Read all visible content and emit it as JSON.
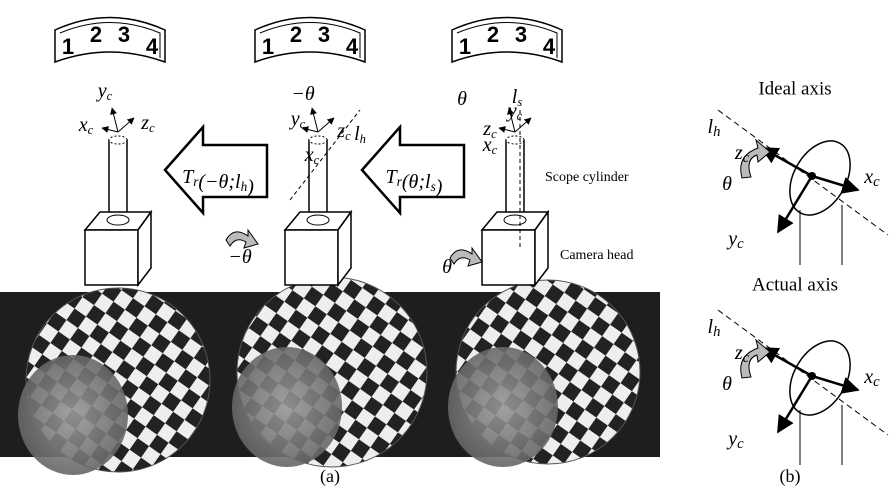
{
  "panel_a": {
    "drums": [
      [
        "1",
        "2",
        "3",
        "4"
      ],
      [
        "1",
        "2",
        "3",
        "4"
      ],
      [
        "1",
        "2",
        "3",
        "4"
      ]
    ],
    "scope_labels": [
      [
        [
          {
            "t": "y",
            "sub": "c"
          }
        ],
        [
          {
            "t": "x",
            "sub": "c"
          }
        ],
        [
          {
            "t": "z",
            "sub": "c"
          }
        ]
      ],
      [
        [
          {
            "t": "−θ"
          }
        ],
        [
          {
            "t": "l",
            "sub": "h"
          }
        ],
        [
          {
            "t": "y",
            "sub": "c"
          }
        ],
        [
          {
            "t": "z",
            "sub": "c"
          }
        ],
        [
          {
            "t": "x",
            "sub": "c"
          }
        ],
        [
          {
            "t": "−θ"
          }
        ]
      ],
      [
        [
          {
            "t": "θ"
          }
        ],
        [
          {
            "t": "l",
            "sub": "s"
          }
        ],
        [
          {
            "t": "y",
            "sub": "c"
          }
        ],
        [
          {
            "t": "z",
            "sub": "c"
          }
        ],
        [
          {
            "t": "x",
            "sub": "c"
          }
        ],
        [
          {
            "t": "θ"
          }
        ]
      ]
    ],
    "transforms": [
      [
        {
          "t": "T",
          "sub": "r"
        },
        {
          "t": "(−θ;"
        },
        {
          "t": "l",
          "sub": "h"
        },
        {
          "t": ")"
        }
      ],
      [
        {
          "t": "T",
          "sub": "r"
        },
        {
          "t": "(θ;"
        },
        {
          "t": "l",
          "sub": "s"
        },
        {
          "t": ")"
        }
      ]
    ],
    "scope_cylinder": "Scope cylinder",
    "camera_head": "Camera head",
    "caption": "(a)"
  },
  "panel_b": {
    "diagrams": [
      {
        "title": "Ideal axis",
        "labels": [
          [
            {
              "t": "l",
              "sub": "h"
            }
          ],
          [
            {
              "t": "z",
              "sub": "c"
            }
          ],
          [
            {
              "t": "x",
              "sub": "c"
            }
          ],
          [
            {
              "t": "y",
              "sub": "c"
            }
          ],
          [
            {
              "t": "θ"
            }
          ]
        ]
      },
      {
        "title": "Actual axis",
        "labels": [
          [
            {
              "t": "l",
              "sub": "h"
            }
          ],
          [
            {
              "t": "z",
              "sub": "c"
            }
          ],
          [
            {
              "t": "x",
              "sub": "c"
            }
          ],
          [
            {
              "t": "y",
              "sub": "c"
            }
          ],
          [
            {
              "t": "θ"
            }
          ]
        ]
      }
    ],
    "caption": "(b)"
  }
}
